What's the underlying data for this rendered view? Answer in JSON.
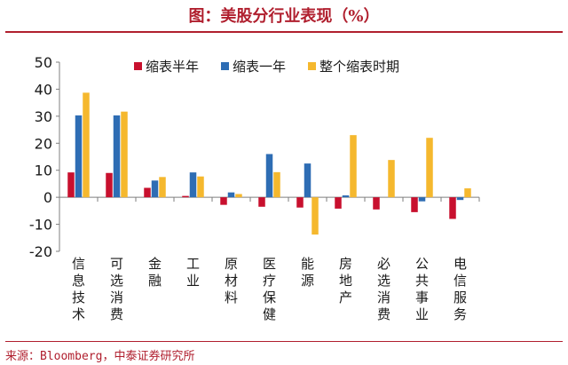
{
  "header": {
    "title": "图：美股分行业表现（%）"
  },
  "footer": {
    "source": "来源：Bloomberg，中泰证券研究所"
  },
  "colors": {
    "accent": "#b01f2e",
    "series": [
      "#c8102e",
      "#2e6db4",
      "#f5b82e"
    ]
  },
  "chart_data": {
    "type": "bar",
    "categories": [
      "信息技术",
      "可选消费",
      "金融",
      "工业",
      "原材料",
      "医疗保健",
      "能源",
      "房地产",
      "必选消费",
      "公共事业",
      "电信服务"
    ],
    "series": [
      {
        "name": "缩表半年",
        "values": [
          9.2,
          9.0,
          3.5,
          0.5,
          -2.8,
          -3.5,
          -3.8,
          -4.2,
          -4.5,
          -5.5,
          -8.0
        ]
      },
      {
        "name": "缩表一年",
        "values": [
          30.3,
          30.3,
          6.2,
          9.2,
          1.8,
          16.0,
          12.5,
          0.7,
          0.0,
          -1.5,
          -1.0
        ]
      },
      {
        "name": "整个缩表时期",
        "values": [
          38.7,
          31.7,
          7.5,
          7.7,
          1.2,
          9.3,
          -13.8,
          23.0,
          13.8,
          22.0,
          3.3
        ]
      }
    ],
    "ylim": [
      -20,
      50
    ],
    "yticks": [
      "50",
      "40",
      "30",
      "20",
      "10",
      "0",
      "-10",
      "-20"
    ],
    "legend_position": "top"
  }
}
